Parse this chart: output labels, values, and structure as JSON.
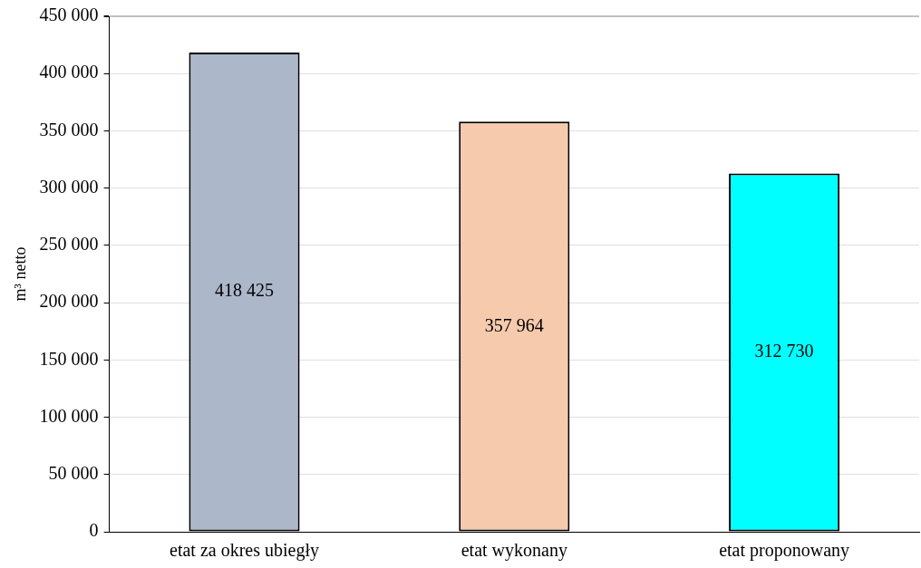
{
  "chart_data": {
    "type": "bar",
    "ylabel": "m³ netto",
    "categories": [
      "etat za okres ubiegły",
      "etat wykonany",
      "etat proponowany"
    ],
    "values": [
      418425,
      357964,
      312730
    ],
    "colors": [
      "#acb8ca",
      "#f6cbad",
      "#00ffff"
    ],
    "ylim": [
      0,
      450000
    ],
    "yticks": [
      0,
      50000,
      100000,
      150000,
      200000,
      250000,
      300000,
      350000,
      400000,
      450000
    ],
    "grid": "y",
    "legend": false,
    "data_labels": true
  }
}
